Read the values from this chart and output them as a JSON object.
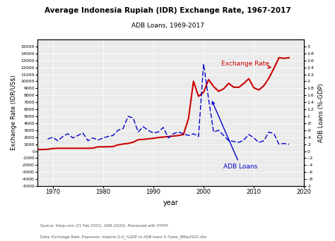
{
  "title": "Average Indonesia Rupiah (IDR) Exchange Rate, 1967-2017",
  "subtitle": "ADB Loans, 1969-2017",
  "xlabel": "year",
  "ylabel_left": "Exchange Rate (IDR/US$)",
  "ylabel_right": "ADB Loans (%-GDP)",
  "source_line1": "Data: Exchange Rate, Expenses, Imports G-S_%GDP vs ADB loans 5-7year_8Mar2021.dta",
  "source_line2": "Source: fxtop.com (21 Feb 2021). ADB (2020). Processed with STATA",
  "xlim": [
    1967,
    2020
  ],
  "ylim_left": [
    -5000,
    16000
  ],
  "ylim_right": [
    -1,
    3.2
  ],
  "yticks_left": [
    -5000,
    -4000,
    -3000,
    -2000,
    -1000,
    0,
    1000,
    2000,
    3000,
    4000,
    5000,
    6000,
    7000,
    8000,
    9000,
    10000,
    11000,
    12000,
    13000,
    14000,
    15000
  ],
  "yticks_right": [
    -1.0,
    -0.8,
    -0.6,
    -0.4,
    -0.2,
    0.0,
    0.2,
    0.4,
    0.6,
    0.8,
    1.0,
    1.2,
    1.4,
    1.6,
    1.8,
    2.0,
    2.2,
    2.4,
    2.6,
    2.8,
    3.0
  ],
  "ytick_right_labels": [
    "-1",
    "-.8",
    "-.6",
    "-.4",
    "-.2",
    "0",
    ".2",
    ".4",
    ".6",
    ".8",
    "1",
    "1.2",
    "1.4",
    "1.6",
    "1.8",
    "2",
    "2.2",
    "2.4",
    "2.6",
    "2.8",
    "3"
  ],
  "xticks": [
    1970,
    1980,
    1990,
    2000,
    2010,
    2020
  ],
  "exchange_rate_years": [
    1967,
    1968,
    1969,
    1970,
    1971,
    1972,
    1973,
    1974,
    1975,
    1976,
    1977,
    1978,
    1979,
    1980,
    1981,
    1982,
    1983,
    1984,
    1985,
    1986,
    1987,
    1988,
    1989,
    1990,
    1991,
    1992,
    1993,
    1994,
    1995,
    1996,
    1997,
    1998,
    1999,
    2000,
    2001,
    2002,
    2003,
    2004,
    2005,
    2006,
    2007,
    2008,
    2009,
    2010,
    2011,
    2012,
    2013,
    2014,
    2015,
    2016,
    2017
  ],
  "exchange_rate_values": [
    240,
    235,
    270,
    378,
    415,
    415,
    415,
    415,
    415,
    415,
    415,
    442,
    623,
    627,
    632,
    661,
    909,
    1026,
    1111,
    1283,
    1644,
    1686,
    1770,
    1843,
    1950,
    2030,
    2087,
    2161,
    2249,
    2383,
    4650,
    10014,
    7855,
    8422,
    10261,
    9261,
    8577,
    8939,
    9713,
    9167,
    9141,
    9699,
    10390,
    9091,
    8770,
    9387,
    10461,
    11865,
    13389,
    13308,
    13381
  ],
  "adb_loans_years": [
    1969,
    1970,
    1971,
    1972,
    1973,
    1974,
    1975,
    1976,
    1977,
    1978,
    1979,
    1980,
    1981,
    1982,
    1983,
    1984,
    1985,
    1986,
    1987,
    1988,
    1989,
    1990,
    1991,
    1992,
    1993,
    1994,
    1995,
    1996,
    1997,
    1998,
    1999,
    2000,
    2001,
    2002,
    2003,
    2004,
    2005,
    2006,
    2007,
    2008,
    2009,
    2010,
    2011,
    2012,
    2013,
    2014,
    2015,
    2016,
    2017
  ],
  "adb_loans_values": [
    0.35,
    0.4,
    0.3,
    0.42,
    0.5,
    0.38,
    0.45,
    0.52,
    0.3,
    0.38,
    0.32,
    0.38,
    0.42,
    0.45,
    0.6,
    0.65,
    1.0,
    0.95,
    0.55,
    0.7,
    0.6,
    0.52,
    0.55,
    0.68,
    0.38,
    0.5,
    0.55,
    0.5,
    0.45,
    0.5,
    0.42,
    2.5,
    1.5,
    0.55,
    0.6,
    0.45,
    0.3,
    0.28,
    0.25,
    0.32,
    0.48,
    0.38,
    0.25,
    0.3,
    0.55,
    0.5,
    0.2,
    0.22,
    0.2
  ],
  "exchange_rate_color": "#cc0000",
  "adb_loans_color": "#0000cc",
  "background_color": "#ffffff",
  "plot_bg_color": "#ebebeb"
}
